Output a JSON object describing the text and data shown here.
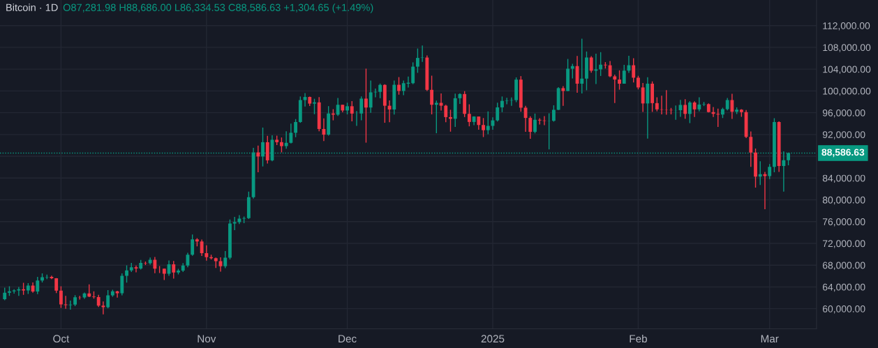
{
  "chart_data": {
    "type": "candlestick",
    "title": "Bitcoin · 1D",
    "subtitle": "O87,281.98 H88,686.00 L86,334.53 C88,586.63 +1,304.65 (+1.49%)",
    "x": [
      "2024-09-19",
      "2024-09-20",
      "2024-09-21",
      "2024-09-22",
      "2024-09-23",
      "2024-09-24",
      "2024-09-25",
      "2024-09-26",
      "2024-09-27",
      "2024-09-28",
      "2024-09-29",
      "2024-09-30",
      "2024-10-01",
      "2024-10-02",
      "2024-10-03",
      "2024-10-04",
      "2024-10-05",
      "2024-10-06",
      "2024-10-07",
      "2024-10-08",
      "2024-10-09",
      "2024-10-10",
      "2024-10-11",
      "2024-10-12",
      "2024-10-13",
      "2024-10-14",
      "2024-10-15",
      "2024-10-16",
      "2024-10-17",
      "2024-10-18",
      "2024-10-19",
      "2024-10-20",
      "2024-10-21",
      "2024-10-22",
      "2024-10-23",
      "2024-10-24",
      "2024-10-25",
      "2024-10-26",
      "2024-10-27",
      "2024-10-28",
      "2024-10-29",
      "2024-10-30",
      "2024-10-31",
      "2024-11-01",
      "2024-11-02",
      "2024-11-03",
      "2024-11-04",
      "2024-11-05",
      "2024-11-06",
      "2024-11-07",
      "2024-11-08",
      "2024-11-09",
      "2024-11-10",
      "2024-11-11",
      "2024-11-12",
      "2024-11-13",
      "2024-11-14",
      "2024-11-15",
      "2024-11-16",
      "2024-11-17",
      "2024-11-18",
      "2024-11-19",
      "2024-11-20",
      "2024-11-21",
      "2024-11-22",
      "2024-11-23",
      "2024-11-24",
      "2024-11-25",
      "2024-11-26",
      "2024-11-27",
      "2024-11-28",
      "2024-11-29",
      "2024-11-30",
      "2024-12-01",
      "2024-12-02",
      "2024-12-03",
      "2024-12-04",
      "2024-12-05",
      "2024-12-06",
      "2024-12-07",
      "2024-12-08",
      "2024-12-09",
      "2024-12-10",
      "2024-12-11",
      "2024-12-12",
      "2024-12-13",
      "2024-12-14",
      "2024-12-15",
      "2024-12-16",
      "2024-12-17",
      "2024-12-18",
      "2024-12-19",
      "2024-12-20",
      "2024-12-21",
      "2024-12-22",
      "2024-12-23",
      "2024-12-24",
      "2024-12-25",
      "2024-12-26",
      "2024-12-27",
      "2024-12-28",
      "2024-12-29",
      "2024-12-30",
      "2024-12-31",
      "2025-01-01",
      "2025-01-02",
      "2025-01-03",
      "2025-01-04",
      "2025-01-05",
      "2025-01-06",
      "2025-01-07",
      "2025-01-08",
      "2025-01-09",
      "2025-01-10",
      "2025-01-11",
      "2025-01-12",
      "2025-01-13",
      "2025-01-14",
      "2025-01-15",
      "2025-01-16",
      "2025-01-17",
      "2025-01-18",
      "2025-01-19",
      "2025-01-20",
      "2025-01-21",
      "2025-01-22",
      "2025-01-23",
      "2025-01-24",
      "2025-01-25",
      "2025-01-26",
      "2025-01-27",
      "2025-01-28",
      "2025-01-29",
      "2025-01-30",
      "2025-01-31",
      "2025-02-01",
      "2025-02-02",
      "2025-02-03",
      "2025-02-04",
      "2025-02-05",
      "2025-02-06",
      "2025-02-07",
      "2025-02-08",
      "2025-02-09",
      "2025-02-10",
      "2025-02-11",
      "2025-02-12",
      "2025-02-13",
      "2025-02-14",
      "2025-02-15",
      "2025-02-16",
      "2025-02-17",
      "2025-02-18",
      "2025-02-19",
      "2025-02-20",
      "2025-02-21",
      "2025-02-22",
      "2025-02-23",
      "2025-02-24",
      "2025-02-25",
      "2025-02-26",
      "2025-02-27",
      "2025-02-28",
      "2025-03-01",
      "2025-03-02",
      "2025-03-03",
      "2025-03-04",
      "2025-03-05"
    ],
    "ohlc": [
      [
        61760,
        63850,
        61550,
        62950
      ],
      [
        62950,
        64130,
        62350,
        63200
      ],
      [
        63200,
        63560,
        62760,
        63350
      ],
      [
        63350,
        64000,
        62360,
        63580
      ],
      [
        63580,
        64750,
        62540,
        63340
      ],
      [
        63340,
        64690,
        62700,
        64260
      ],
      [
        64260,
        64820,
        62950,
        63150
      ],
      [
        63150,
        65840,
        62670,
        65170
      ],
      [
        65170,
        66500,
        64820,
        65770
      ],
      [
        65770,
        66260,
        65420,
        65860
      ],
      [
        65860,
        66080,
        65430,
        65600
      ],
      [
        65600,
        65620,
        62860,
        63330
      ],
      [
        63330,
        64130,
        60160,
        60800
      ],
      [
        60800,
        62370,
        59980,
        60650
      ],
      [
        60650,
        61480,
        59830,
        60750
      ],
      [
        60750,
        62480,
        60460,
        62090
      ],
      [
        62090,
        62370,
        61690,
        62060
      ],
      [
        62060,
        62980,
        61800,
        62820
      ],
      [
        62820,
        64480,
        62130,
        62220
      ],
      [
        62220,
        63200,
        61860,
        62130
      ],
      [
        62130,
        62540,
        60300,
        60580
      ],
      [
        60580,
        61320,
        58950,
        60280
      ],
      [
        60280,
        63420,
        60080,
        62450
      ],
      [
        62450,
        63480,
        62190,
        63190
      ],
      [
        63190,
        63290,
        62050,
        62850
      ],
      [
        62850,
        66500,
        62460,
        66050
      ],
      [
        66050,
        67950,
        64800,
        67040
      ],
      [
        67040,
        68420,
        66750,
        67610
      ],
      [
        67610,
        67940,
        66670,
        67400
      ],
      [
        67400,
        68970,
        67180,
        68420
      ],
      [
        68420,
        68670,
        68020,
        68360
      ],
      [
        68360,
        69400,
        68100,
        69000
      ],
      [
        69000,
        69500,
        66520,
        67370
      ],
      [
        67370,
        67840,
        66570,
        67360
      ],
      [
        67360,
        67400,
        65260,
        66430
      ],
      [
        66430,
        68850,
        66050,
        68160
      ],
      [
        68160,
        68750,
        65520,
        66640
      ],
      [
        66640,
        67320,
        66310,
        67010
      ],
      [
        67010,
        68390,
        66750,
        67930
      ],
      [
        67930,
        70270,
        67620,
        69910
      ],
      [
        69910,
        73620,
        69730,
        72720
      ],
      [
        72720,
        72960,
        71440,
        72340
      ],
      [
        72340,
        72700,
        69690,
        70220
      ],
      [
        70220,
        71630,
        68820,
        69480
      ],
      [
        69480,
        69930,
        69060,
        69290
      ],
      [
        69290,
        69400,
        67480,
        68740
      ],
      [
        68740,
        69430,
        66800,
        67810
      ],
      [
        67810,
        70580,
        67460,
        69360
      ],
      [
        69360,
        76400,
        69060,
        75640
      ],
      [
        75640,
        76850,
        74420,
        75900
      ],
      [
        75900,
        77200,
        75560,
        76540
      ],
      [
        76540,
        76930,
        75710,
        76650
      ],
      [
        76650,
        81500,
        76490,
        80470
      ],
      [
        80470,
        89530,
        80220,
        88700
      ],
      [
        88700,
        89960,
        85070,
        87960
      ],
      [
        87960,
        93270,
        86130,
        90580
      ],
      [
        90580,
        91770,
        86670,
        87250
      ],
      [
        87250,
        91850,
        87070,
        91030
      ],
      [
        91030,
        91780,
        90060,
        90590
      ],
      [
        90590,
        91450,
        88720,
        89860
      ],
      [
        89860,
        92590,
        89380,
        90470
      ],
      [
        90470,
        94000,
        90360,
        92310
      ],
      [
        92310,
        94830,
        91500,
        94290
      ],
      [
        94290,
        98980,
        94140,
        98320
      ],
      [
        98320,
        99590,
        97120,
        98890
      ],
      [
        98890,
        98970,
        97230,
        97670
      ],
      [
        97670,
        98560,
        95730,
        97900
      ],
      [
        97900,
        98870,
        92600,
        93010
      ],
      [
        93010,
        94970,
        90790,
        91970
      ],
      [
        91970,
        97210,
        91790,
        95860
      ],
      [
        95860,
        96650,
        94600,
        95640
      ],
      [
        95640,
        98690,
        95410,
        97460
      ],
      [
        97460,
        97460,
        96090,
        96410
      ],
      [
        96410,
        97840,
        95690,
        97190
      ],
      [
        97190,
        98130,
        94400,
        95840
      ],
      [
        95840,
        96310,
        93580,
        95850
      ],
      [
        95850,
        99000,
        94590,
        98590
      ],
      [
        98590,
        104090,
        90500,
        96950
      ],
      [
        96950,
        101900,
        95980,
        99740
      ],
      [
        99740,
        100440,
        98840,
        99830
      ],
      [
        99830,
        101350,
        98660,
        101110
      ],
      [
        101110,
        101220,
        94150,
        97280
      ],
      [
        97280,
        98270,
        94260,
        96590
      ],
      [
        96590,
        101890,
        95660,
        101130
      ],
      [
        101130,
        102540,
        99310,
        100000
      ],
      [
        100000,
        101900,
        99210,
        101420
      ],
      [
        101420,
        102650,
        100610,
        101420
      ],
      [
        101420,
        105250,
        101240,
        104460
      ],
      [
        104460,
        107790,
        103330,
        106060
      ],
      [
        106060,
        108350,
        105320,
        106130
      ],
      [
        106130,
        106520,
        100000,
        100200
      ],
      [
        100200,
        102800,
        95700,
        97460
      ],
      [
        97460,
        98230,
        92230,
        97810
      ],
      [
        97810,
        99540,
        96400,
        97290
      ],
      [
        97290,
        97450,
        94250,
        95190
      ],
      [
        95190,
        96540,
        92520,
        94880
      ],
      [
        94880,
        99490,
        93380,
        98660
      ],
      [
        98660,
        99570,
        97630,
        99430
      ],
      [
        99430,
        99960,
        95200,
        95790
      ],
      [
        95790,
        97540,
        93500,
        94300
      ],
      [
        94300,
        95350,
        93700,
        95300
      ],
      [
        95300,
        95310,
        92880,
        93740
      ],
      [
        93740,
        95020,
        91530,
        92790
      ],
      [
        92790,
        96250,
        92030,
        93580
      ],
      [
        93580,
        95150,
        92890,
        94590
      ],
      [
        94590,
        97840,
        94390,
        96980
      ],
      [
        96980,
        98980,
        96100,
        98170
      ],
      [
        98170,
        98730,
        97560,
        98240
      ],
      [
        98240,
        98810,
        97270,
        98310
      ],
      [
        98310,
        102480,
        97930,
        102080
      ],
      [
        102080,
        102720,
        96180,
        96920
      ],
      [
        96920,
        97260,
        92500,
        95040
      ],
      [
        95040,
        95350,
        91220,
        92480
      ],
      [
        92480,
        95840,
        92210,
        94700
      ],
      [
        94700,
        94980,
        93830,
        94570
      ],
      [
        94570,
        95380,
        93710,
        94490
      ],
      [
        94490,
        95890,
        89260,
        94520
      ],
      [
        94520,
        97370,
        94350,
        96530
      ],
      [
        96530,
        100680,
        96500,
        100510
      ],
      [
        100510,
        100870,
        97260,
        99990
      ],
      [
        99990,
        105870,
        99950,
        104080
      ],
      [
        104080,
        104990,
        102280,
        104560
      ],
      [
        104560,
        106420,
        99650,
        101330
      ],
      [
        101330,
        109590,
        99550,
        102260
      ],
      [
        102260,
        107240,
        100120,
        106140
      ],
      [
        106140,
        106390,
        103340,
        103710
      ],
      [
        103710,
        106850,
        101260,
        103960
      ],
      [
        103960,
        107120,
        102750,
        104820
      ],
      [
        104820,
        105290,
        104110,
        104710
      ],
      [
        104710,
        105500,
        102520,
        102680
      ],
      [
        102680,
        103000,
        97780,
        102090
      ],
      [
        102090,
        103780,
        100230,
        101330
      ],
      [
        101330,
        104780,
        101330,
        103730
      ],
      [
        103730,
        106460,
        103320,
        104720
      ],
      [
        104720,
        106010,
        101560,
        102430
      ],
      [
        102430,
        102780,
        100280,
        100640
      ],
      [
        100640,
        101460,
        96150,
        97700
      ],
      [
        97700,
        102500,
        91230,
        101330
      ],
      [
        101330,
        101750,
        96150,
        97760
      ],
      [
        97760,
        98830,
        96250,
        96610
      ],
      [
        96610,
        99120,
        95680,
        96550
      ],
      [
        96550,
        100140,
        95620,
        96510
      ],
      [
        96510,
        96880,
        95690,
        96440
      ],
      [
        96440,
        97320,
        94710,
        96460
      ],
      [
        96460,
        98350,
        95260,
        97430
      ],
      [
        97430,
        98480,
        94880,
        95780
      ],
      [
        95780,
        98120,
        94090,
        97870
      ],
      [
        97870,
        98080,
        95220,
        96610
      ],
      [
        96610,
        98830,
        96250,
        97500
      ],
      [
        97500,
        97970,
        97220,
        97570
      ],
      [
        97570,
        97700,
        96050,
        96120
      ],
      [
        96120,
        97050,
        95210,
        95780
      ],
      [
        95780,
        96750,
        93390,
        95670
      ],
      [
        95670,
        96900,
        95030,
        96640
      ],
      [
        96640,
        98710,
        96420,
        98310
      ],
      [
        98310,
        99480,
        94870,
        96180
      ],
      [
        96180,
        96980,
        95770,
        96560
      ],
      [
        96560,
        96650,
        95230,
        96120
      ],
      [
        96120,
        96500,
        91350,
        91550
      ],
      [
        91550,
        92540,
        86050,
        88680
      ],
      [
        88680,
        89410,
        82260,
        84250
      ],
      [
        84250,
        87080,
        82720,
        84710
      ],
      [
        84710,
        85120,
        78260,
        84350
      ],
      [
        84350,
        86560,
        83820,
        86060
      ],
      [
        86060,
        95000,
        85050,
        94270
      ],
      [
        94270,
        94420,
        85120,
        86220
      ],
      [
        86220,
        88910,
        81500,
        87281.98
      ],
      [
        87281.98,
        88686.0,
        86334.53,
        88586.63
      ]
    ],
    "xlim": [
      "2024-09-18",
      "2025-03-11"
    ],
    "xticks": [
      {
        "value": "2024-10-01",
        "label": "Oct"
      },
      {
        "value": "2024-11-01",
        "label": "Nov"
      },
      {
        "value": "2024-12-01",
        "label": "Dec"
      },
      {
        "value": "2025-01-01",
        "label": "2025"
      },
      {
        "value": "2025-02-01",
        "label": "Feb"
      },
      {
        "value": "2025-03-01",
        "label": "Mar"
      }
    ],
    "ylim": [
      56300,
      116700
    ],
    "yticks": [
      {
        "value": 60000,
        "label": "60,000.00"
      },
      {
        "value": 64000,
        "label": "64,000.00"
      },
      {
        "value": 68000,
        "label": "68,000.00"
      },
      {
        "value": 72000,
        "label": "72,000.00"
      },
      {
        "value": 76000,
        "label": "76,000.00"
      },
      {
        "value": 80000,
        "label": "80,000.00"
      },
      {
        "value": 84000,
        "label": "84,000.00"
      },
      {
        "value": 88000,
        "label": null
      },
      {
        "value": 92000,
        "label": "92,000.00"
      },
      {
        "value": 96000,
        "label": "96,000.00"
      },
      {
        "value": 100000,
        "label": "100,000.00"
      },
      {
        "value": 104000,
        "label": "104,000.00"
      },
      {
        "value": 108000,
        "label": "108,000.00"
      },
      {
        "value": 112000,
        "label": "112,000.00"
      }
    ],
    "ref_lines": [
      {
        "axis": "y",
        "value": 88586.63,
        "label": "88,586.63",
        "color": "#089981",
        "line_style": "dotted"
      }
    ],
    "grid": true
  }
}
